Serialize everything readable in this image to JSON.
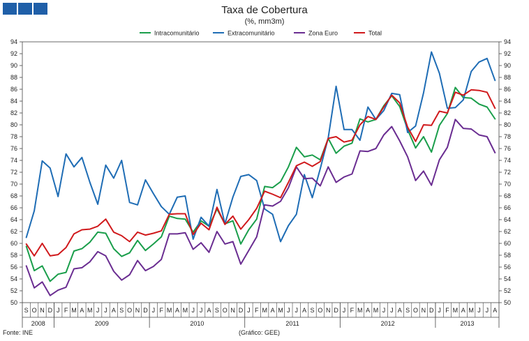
{
  "header": {
    "title": "Taxa de Cobertura",
    "subtitle": "(%, mm3m)"
  },
  "footer": {
    "source": "Fonte: INE",
    "credit": "(Gráfico: GEE)"
  },
  "chart_data": {
    "type": "line",
    "title": "Taxa de Cobertura",
    "subtitle": "(%, mm3m)",
    "legend_position": "top-center",
    "ylim": [
      50,
      94
    ],
    "ytick_step": 2,
    "grid": false,
    "dual_y_axis": true,
    "x": [
      "S",
      "O",
      "N",
      "D",
      "J",
      "F",
      "M",
      "A",
      "M",
      "J",
      "J",
      "A",
      "S",
      "O",
      "N",
      "D",
      "J",
      "F",
      "M",
      "A",
      "M",
      "J",
      "J",
      "A",
      "S",
      "O",
      "N",
      "D",
      "J",
      "F",
      "M",
      "A",
      "M",
      "J",
      "J",
      "A",
      "S",
      "O",
      "N",
      "D",
      "J",
      "F",
      "M",
      "A",
      "M",
      "J",
      "J",
      "A",
      "S",
      "O",
      "N",
      "D",
      "J",
      "F",
      "M",
      "A",
      "M",
      "J",
      "J",
      "A"
    ],
    "year_labels": [
      {
        "label": "2008",
        "start": 0,
        "end": 3
      },
      {
        "label": "2009",
        "start": 4,
        "end": 15
      },
      {
        "label": "2010",
        "start": 16,
        "end": 27
      },
      {
        "label": "2011",
        "start": 28,
        "end": 39
      },
      {
        "label": "2012",
        "start": 40,
        "end": 51
      },
      {
        "label": "2013",
        "start": 52,
        "end": 59
      }
    ],
    "series": [
      {
        "name": "Intracomunitário",
        "color": "#1a9e4b",
        "values": [
          59.5,
          55.4,
          56.2,
          53.6,
          54.8,
          55.1,
          58.7,
          59.1,
          60.2,
          61.9,
          61.7,
          59.1,
          57.8,
          58.4,
          60.5,
          58.8,
          59.9,
          61.1,
          64.6,
          64.2,
          64.1,
          61.9,
          63.8,
          62.9,
          65.8,
          63.3,
          63.8,
          59.9,
          62.3,
          64.1,
          69.6,
          69.4,
          70.4,
          72.9,
          76.2,
          74.6,
          74.9,
          74.1,
          77.7,
          75.2,
          76.4,
          76.9,
          81.0,
          80.5,
          80.9,
          83.2,
          84.9,
          83.1,
          79.2,
          76.1,
          78.0,
          75.4,
          79.9,
          81.9,
          86.3,
          84.6,
          84.5,
          83.5,
          83.0,
          81.0
        ]
      },
      {
        "name": "Extracomunitário",
        "color": "#1f6db5",
        "values": [
          61.0,
          65.5,
          73.9,
          72.7,
          67.9,
          75.1,
          72.9,
          74.5,
          70.3,
          66.6,
          73.2,
          71.0,
          74.0,
          66.9,
          66.5,
          70.7,
          68.4,
          66.2,
          64.9,
          67.8,
          68.0,
          60.7,
          64.4,
          62.9,
          69.1,
          63.3,
          67.8,
          71.3,
          71.6,
          70.6,
          65.8,
          64.9,
          60.3,
          63.0,
          64.9,
          71.6,
          67.7,
          72.6,
          77.8,
          86.5,
          79.2,
          79.2,
          77.4,
          83.0,
          80.9,
          82.4,
          85.3,
          85.1,
          78.7,
          79.8,
          85.4,
          92.3,
          88.7,
          82.8,
          82.9,
          84.2,
          89.0,
          90.6,
          91.2,
          87.5
        ]
      },
      {
        "name": "Zona Euro",
        "color": "#6a2d91",
        "values": [
          56.2,
          52.5,
          53.5,
          51.2,
          52.1,
          52.6,
          55.7,
          55.9,
          56.9,
          58.6,
          57.9,
          55.3,
          53.8,
          54.7,
          57.1,
          55.4,
          56.1,
          57.3,
          61.6,
          61.6,
          61.8,
          59.0,
          60.1,
          58.5,
          62.0,
          59.9,
          60.3,
          56.5,
          58.8,
          61.1,
          66.5,
          66.3,
          67.1,
          69.4,
          72.9,
          70.9,
          71.0,
          69.7,
          72.9,
          70.3,
          71.2,
          71.7,
          75.6,
          75.5,
          76.0,
          78.3,
          79.7,
          77.3,
          74.6,
          70.6,
          72.2,
          69.8,
          74.1,
          76.2,
          80.9,
          79.4,
          79.3,
          78.3,
          78.0,
          75.3
        ]
      },
      {
        "name": "Total",
        "color": "#d0191c",
        "values": [
          59.9,
          57.9,
          60.0,
          57.9,
          58.1,
          59.3,
          61.6,
          62.3,
          62.4,
          62.9,
          64.1,
          61.9,
          61.3,
          60.3,
          61.9,
          61.4,
          61.7,
          62.1,
          64.9,
          65.0,
          65.0,
          61.5,
          63.4,
          62.3,
          66.1,
          63.2,
          64.6,
          62.4,
          64.0,
          65.9,
          68.8,
          68.3,
          67.7,
          70.3,
          73.1,
          73.7,
          73.0,
          73.8,
          77.7,
          78.0,
          77.1,
          77.4,
          80.0,
          81.4,
          80.9,
          83.0,
          85.0,
          83.7,
          79.6,
          77.2,
          80.0,
          79.9,
          82.3,
          82.0,
          85.5,
          85.0,
          85.9,
          85.8,
          85.5,
          82.8
        ]
      }
    ]
  }
}
